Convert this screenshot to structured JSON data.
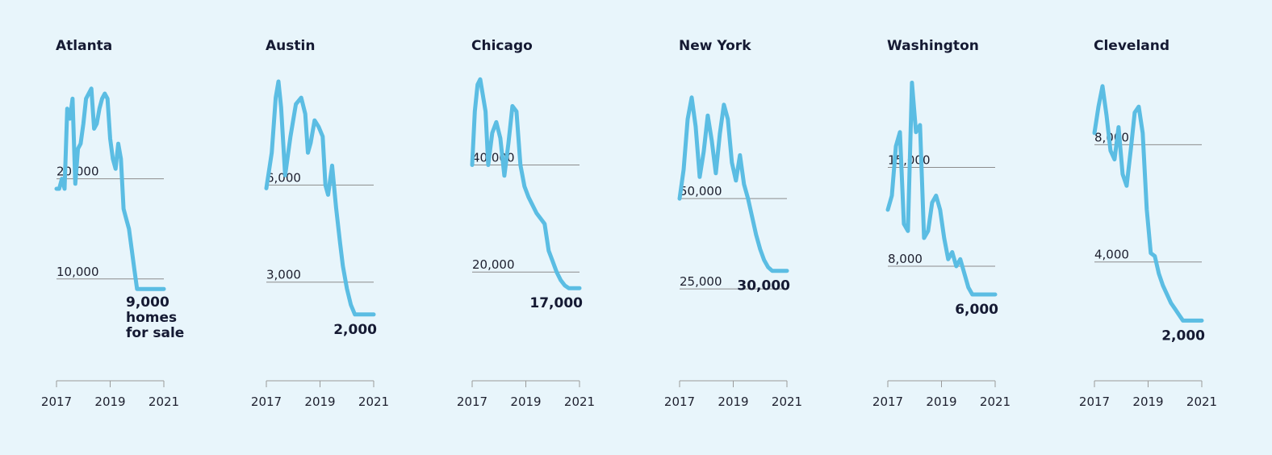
{
  "chart_data": [
    {
      "type": "line",
      "title": "Atlanta",
      "x_ticks": [
        "2017",
        "2019",
        "2021"
      ],
      "x": [
        2017.0,
        2017.1,
        2017.2,
        2017.3,
        2017.4,
        2017.5,
        2017.6,
        2017.7,
        2017.8,
        2017.9,
        2018.0,
        2018.1,
        2018.2,
        2018.3,
        2018.4,
        2018.5,
        2018.6,
        2018.7,
        2018.8,
        2018.9,
        2019.0,
        2019.1,
        2019.2,
        2019.3,
        2019.4,
        2019.5,
        2019.6,
        2019.7,
        2019.8,
        2019.9,
        2020.0,
        2020.1,
        2020.2,
        2020.3,
        2020.4,
        2020.5,
        2020.6,
        2020.7,
        2020.8,
        2020.9,
        2021.0
      ],
      "y": [
        19000,
        19000,
        20000,
        19000,
        27000,
        26000,
        28000,
        19500,
        23000,
        23500,
        25500,
        28000,
        28500,
        29000,
        25000,
        25500,
        27000,
        28000,
        28500,
        28000,
        24000,
        22000,
        21000,
        23500,
        22000,
        17000,
        16000,
        15000,
        13000,
        11000,
        9000,
        9000,
        9000,
        9000,
        9000,
        9000,
        9000,
        9000,
        9000,
        9000,
        9000
      ],
      "gridlines": [
        {
          "value": 20000,
          "label": "20,000"
        },
        {
          "value": 10000,
          "label": "10,000"
        }
      ],
      "ylim": [
        0,
        31000
      ],
      "end_label": [
        "9,000",
        "homes",
        "for sale"
      ]
    },
    {
      "type": "line",
      "title": "Austin",
      "x_ticks": [
        "2017",
        "2019",
        "2021"
      ],
      "x": [
        2017.0,
        2017.2,
        2017.35,
        2017.45,
        2017.55,
        2017.7,
        2017.9,
        2018.1,
        2018.3,
        2018.45,
        2018.55,
        2018.65,
        2018.8,
        2018.95,
        2019.1,
        2019.2,
        2019.3,
        2019.45,
        2019.6,
        2019.75,
        2019.85,
        2020.0,
        2020.15,
        2020.3,
        2020.45,
        2020.6,
        2020.75,
        2020.9,
        2021.0
      ],
      "y": [
        5900,
        7000,
        8700,
        9200,
        8400,
        6300,
        7500,
        8500,
        8700,
        8200,
        7000,
        7300,
        8000,
        7800,
        7500,
        6000,
        5700,
        6600,
        5300,
        4200,
        3500,
        2800,
        2300,
        2000,
        2000,
        2000,
        2000,
        2000,
        2000
      ],
      "gridlines": [
        {
          "value": 6000,
          "label": "6,000"
        },
        {
          "value": 3000,
          "label": "3,000"
        }
      ],
      "ylim": [
        0,
        9600
      ],
      "end_label": [
        "2,000"
      ]
    },
    {
      "type": "line",
      "title": "Chicago",
      "x_ticks": [
        "2017",
        "2019",
        "2021"
      ],
      "x": [
        2017.0,
        2017.1,
        2017.2,
        2017.3,
        2017.4,
        2017.5,
        2017.6,
        2017.75,
        2017.9,
        2018.05,
        2018.2,
        2018.35,
        2018.5,
        2018.65,
        2018.8,
        2018.95,
        2019.1,
        2019.25,
        2019.4,
        2019.55,
        2019.7,
        2019.85,
        2020.0,
        2020.15,
        2020.3,
        2020.45,
        2020.6,
        2020.75,
        2020.9,
        2021.0
      ],
      "y": [
        40000,
        50000,
        55000,
        56000,
        53000,
        50000,
        40000,
        46000,
        48000,
        45000,
        38000,
        44000,
        51000,
        50000,
        40000,
        36000,
        34000,
        32500,
        31000,
        30000,
        29000,
        24000,
        22000,
        20000,
        18500,
        17500,
        17000,
        17000,
        17000,
        17000
      ],
      "gridlines": [
        {
          "value": 40000,
          "label": "40,000"
        },
        {
          "value": 20000,
          "label": "20,000"
        }
      ],
      "ylim": [
        0,
        58000
      ],
      "end_label": [
        "17,000"
      ]
    },
    {
      "type": "line",
      "title": "New York",
      "x_ticks": [
        "2017",
        "2019",
        "2021"
      ],
      "x": [
        2017.0,
        2017.15,
        2017.3,
        2017.45,
        2017.6,
        2017.75,
        2017.9,
        2018.05,
        2018.2,
        2018.35,
        2018.5,
        2018.65,
        2018.8,
        2018.95,
        2019.1,
        2019.25,
        2019.4,
        2019.55,
        2019.7,
        2019.85,
        2020.0,
        2020.15,
        2020.3,
        2020.45,
        2020.6,
        2020.75,
        2020.9,
        2021.0
      ],
      "y": [
        50000,
        58000,
        72000,
        78000,
        70000,
        56000,
        63000,
        73000,
        66000,
        57000,
        68000,
        76000,
        72000,
        60000,
        55000,
        62000,
        54000,
        50000,
        45000,
        40000,
        36000,
        33000,
        31000,
        30000,
        30000,
        30000,
        30000,
        30000
      ],
      "gridlines": [
        {
          "value": 50000,
          "label": "50,000"
        },
        {
          "value": 25000,
          "label": "25,000"
        }
      ],
      "ylim": [
        0,
        86000
      ],
      "end_label": [
        "30,000"
      ]
    },
    {
      "type": "line",
      "title": "Washington",
      "x_ticks": [
        "2017",
        "2019",
        "2021"
      ],
      "x": [
        2017.0,
        2017.15,
        2017.3,
        2017.45,
        2017.6,
        2017.75,
        2017.9,
        2018.05,
        2018.2,
        2018.35,
        2018.5,
        2018.65,
        2018.8,
        2018.95,
        2019.1,
        2019.25,
        2019.4,
        2019.55,
        2019.7,
        2019.85,
        2020.0,
        2020.15,
        2020.3,
        2020.45,
        2020.6,
        2020.75,
        2020.9,
        2021.0
      ],
      "y": [
        12000,
        13000,
        16500,
        17500,
        11000,
        10500,
        21000,
        17500,
        18000,
        10000,
        10500,
        12500,
        13000,
        12000,
        10000,
        8500,
        9000,
        8000,
        8500,
        7500,
        6500,
        6000,
        6000,
        6000,
        6000,
        6000,
        6000,
        6000
      ],
      "gridlines": [
        {
          "value": 15000,
          "label": "15,000"
        },
        {
          "value": 8000,
          "label": "8,000"
        }
      ],
      "ylim": [
        0,
        22000
      ],
      "end_label": [
        "6,000"
      ]
    },
    {
      "type": "line",
      "title": "Cleveland",
      "x_ticks": [
        "2017",
        "2019",
        "2021"
      ],
      "x": [
        2017.0,
        2017.15,
        2017.3,
        2017.45,
        2017.6,
        2017.75,
        2017.9,
        2018.05,
        2018.2,
        2018.35,
        2018.5,
        2018.65,
        2018.8,
        2018.95,
        2019.1,
        2019.25,
        2019.4,
        2019.55,
        2019.7,
        2019.85,
        2020.0,
        2020.15,
        2020.3,
        2020.45,
        2020.6,
        2020.75,
        2020.9,
        2021.0
      ],
      "y": [
        8400,
        9300,
        10000,
        9000,
        7800,
        7500,
        8600,
        7000,
        6600,
        7800,
        9100,
        9300,
        8400,
        5800,
        4300,
        4200,
        3600,
        3200,
        2900,
        2600,
        2400,
        2200,
        2000,
        2000,
        2000,
        2000,
        2000,
        2000
      ],
      "gridlines": [
        {
          "value": 8000,
          "label": "8,000"
        },
        {
          "value": 4000,
          "label": "4,000"
        }
      ],
      "ylim": [
        0,
        10600
      ],
      "end_label": [
        "2,000"
      ]
    }
  ]
}
